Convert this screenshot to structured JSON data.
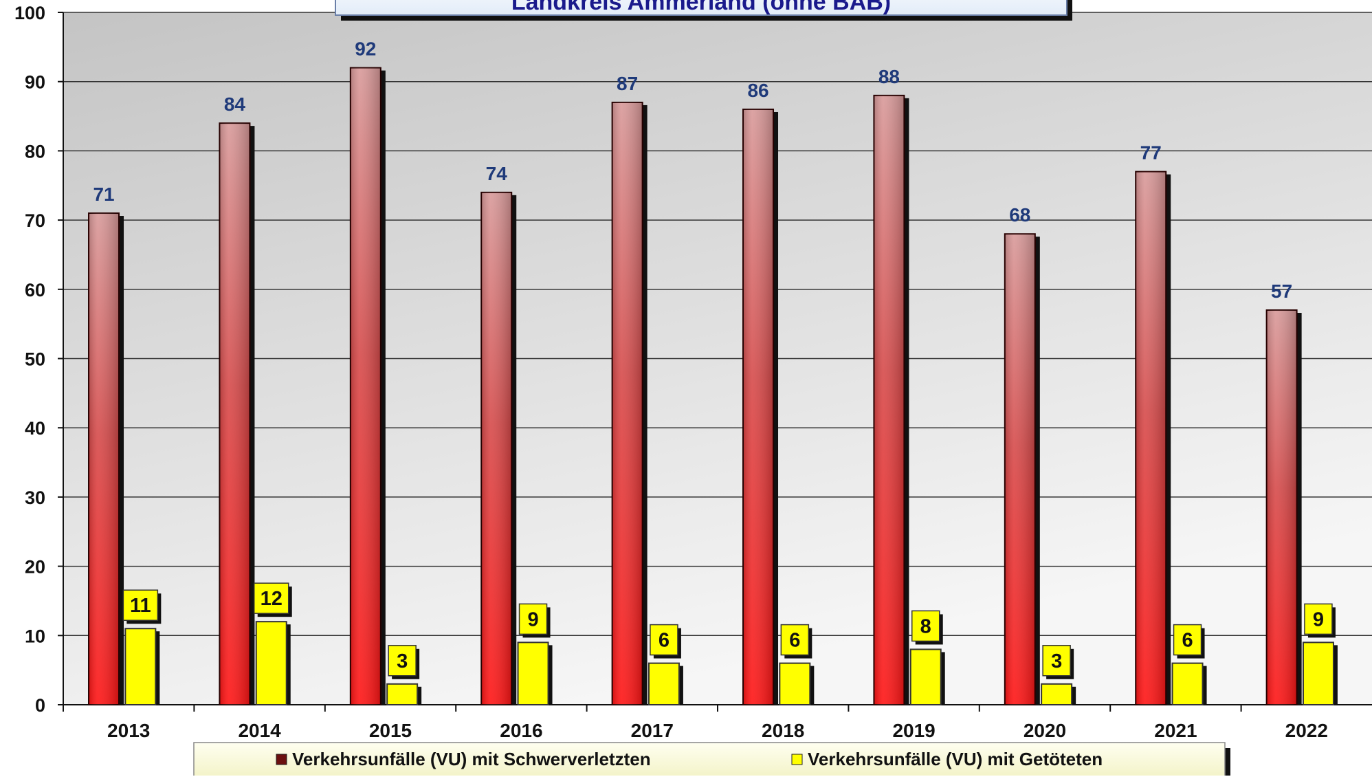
{
  "chart_data": {
    "type": "bar",
    "title": "Landkreis Ammerland (ohne BAB)",
    "categories": [
      "2013",
      "2014",
      "2015",
      "2016",
      "2017",
      "2018",
      "2019",
      "2020",
      "2021",
      "2022"
    ],
    "series": [
      {
        "name": "Verkehrsunfälle (VU) mit Schwerverletzten",
        "values": [
          71,
          84,
          92,
          74,
          87,
          86,
          88,
          68,
          77,
          57
        ]
      },
      {
        "name": "Verkehrsunfälle (VU) mit Getöteten",
        "values": [
          11,
          12,
          3,
          9,
          6,
          6,
          8,
          3,
          6,
          9
        ]
      }
    ],
    "y_ticks": [
      "0",
      "10",
      "20",
      "30",
      "40",
      "50",
      "60",
      "70",
      "80",
      "90",
      "100"
    ],
    "xlabel": "",
    "ylabel": "",
    "ylim": [
      0,
      100
    ],
    "grid": true,
    "legend_position": "bottom"
  },
  "colors": {
    "series_1_top": "#d99b9b",
    "series_1_bottom": "#ff1a1a",
    "series_2": "#ffff00",
    "value_label_series_1": "#1f3a7a",
    "title_text": "#1a1a8c",
    "plot_bg_top": "#c8c8c8",
    "plot_bg_bottom": "#f4f4f4"
  }
}
